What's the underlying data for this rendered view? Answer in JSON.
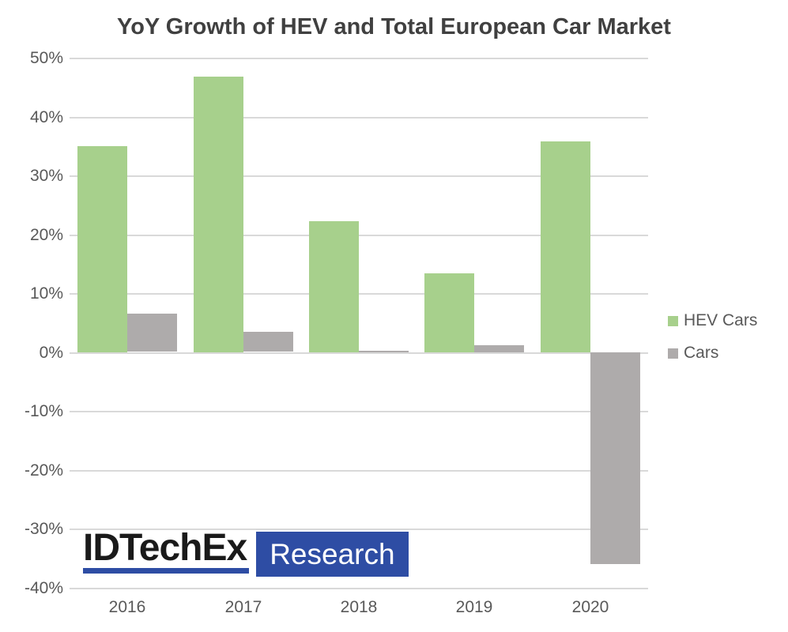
{
  "chart_data": {
    "type": "bar",
    "title": "YoY Growth of HEV and Total European Car Market",
    "categories": [
      "2016",
      "2017",
      "2018",
      "2019",
      "2020"
    ],
    "series": [
      {
        "name": "HEV Cars",
        "color": "#a7d08c",
        "values": [
          35.0,
          46.8,
          22.2,
          13.4,
          35.8
        ]
      },
      {
        "name": "Cars",
        "color": "#aeabab",
        "values": [
          6.5,
          3.4,
          0.2,
          1.2,
          -35.9
        ]
      }
    ],
    "xlabel": "",
    "ylabel": "",
    "ylim": [
      -40,
      50
    ],
    "ytick_step": 10,
    "ytick_suffix": "%",
    "grid": true,
    "legend_position": "right"
  },
  "colors": {
    "title": "#404040",
    "axis_labels": "#595959",
    "gridline": "#d9d9d9",
    "background": "#ffffff"
  },
  "logo": {
    "brand": "IDTechEx",
    "suffix": "Research",
    "brand_text_color": "#1a1a1a",
    "accent_color": "#2e4da4",
    "suffix_text_color": "#ffffff"
  }
}
